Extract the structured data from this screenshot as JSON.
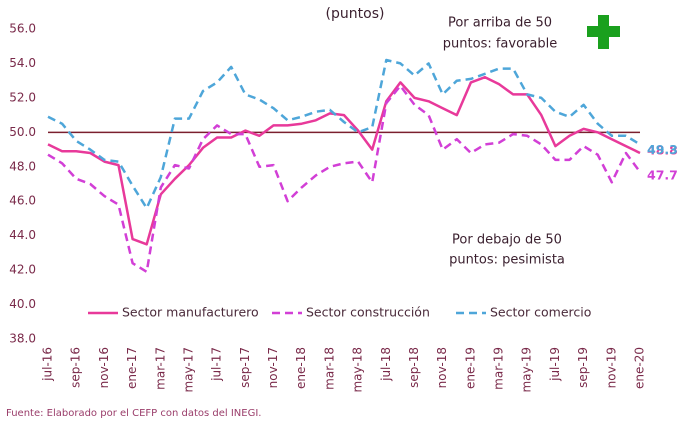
{
  "chart_data": {
    "type": "line",
    "title": "(puntos)",
    "annotation_above": [
      "Por arriba de 50",
      "puntos: favorable"
    ],
    "annotation_below": [
      "Por debajo de 50",
      "puntos: pesimista"
    ],
    "source": "Fuente: Elaborado por el CEFP con datos del INEGI.",
    "reference_line": 50,
    "reference_color": "#7b1f2e",
    "categories": [
      "jul-16",
      null,
      "sep-16",
      null,
      "nov-16",
      null,
      "ene-17",
      null,
      "mar-17",
      null,
      "may-17",
      null,
      "jul-17",
      null,
      "sep-17",
      null,
      "nov-17",
      null,
      "ene-18",
      null,
      "mar-18",
      null,
      "may-18",
      null,
      "jul-18",
      null,
      "sep-18",
      null,
      "nov-18",
      null,
      "ene-19",
      null,
      "mar-19",
      null,
      "may-19",
      null,
      "jul-19",
      null,
      "sep-19",
      null,
      "nov-19",
      null,
      "ene-20"
    ],
    "series": [
      {
        "name": "Sector manufacturero",
        "color": "#e8399a",
        "dash": "solid",
        "values": [
          49.3,
          48.9,
          48.9,
          48.8,
          48.3,
          48.1,
          43.8,
          43.5,
          46.4,
          47.3,
          48.1,
          49.1,
          49.7,
          49.7,
          50.1,
          49.8,
          50.4,
          50.4,
          50.5,
          50.7,
          51.1,
          51.0,
          50.1,
          49.0,
          51.8,
          52.9,
          52.0,
          51.8,
          51.4,
          51.0,
          52.9,
          53.2,
          52.8,
          52.2,
          52.2,
          51.0,
          49.2,
          49.8,
          50.2,
          50.0,
          49.6,
          49.2,
          48.8
        ]
      },
      {
        "name": "Sector construcción",
        "color": "#d23fd6",
        "dash": "dashed",
        "values": [
          48.7,
          48.2,
          47.3,
          47.0,
          46.3,
          45.8,
          42.4,
          41.9,
          46.8,
          48.1,
          47.9,
          49.6,
          50.4,
          49.9,
          49.9,
          48.0,
          48.1,
          46.0,
          46.8,
          47.5,
          48.0,
          48.2,
          48.3,
          47.1,
          51.7,
          52.7,
          51.6,
          51.0,
          49.0,
          49.6,
          48.8,
          49.3,
          49.4,
          49.9,
          49.8,
          49.3,
          48.4,
          48.4,
          49.2,
          48.7,
          47.1,
          48.8,
          47.7
        ]
      },
      {
        "name": "Sector comercio",
        "color": "#4ea6d9",
        "dash": "dashed",
        "values": [
          50.9,
          50.5,
          49.5,
          49.0,
          48.4,
          48.3,
          46.9,
          45.6,
          47.4,
          50.8,
          50.8,
          52.4,
          52.9,
          53.8,
          52.2,
          51.9,
          51.4,
          50.7,
          50.9,
          51.2,
          51.3,
          50.6,
          50.0,
          50.3,
          54.2,
          54.0,
          53.3,
          54.0,
          52.2,
          53.0,
          53.1,
          53.4,
          53.7,
          53.7,
          52.2,
          52.0,
          51.2,
          50.9,
          51.6,
          50.5,
          49.8,
          49.8,
          49.3
        ]
      }
    ],
    "ylim": [
      38,
      56
    ],
    "yticks": [
      {
        "value": 38,
        "label": "38.0"
      },
      {
        "value": 40,
        "label": "40.0"
      },
      {
        "value": 42,
        "label": "42.0"
      },
      {
        "value": 44,
        "label": "44.0"
      },
      {
        "value": 46,
        "label": "46.0"
      },
      {
        "value": 48,
        "label": "48.0"
      },
      {
        "value": 50,
        "label": "50.0"
      },
      {
        "value": 52,
        "label": "52.0"
      },
      {
        "value": 54,
        "label": "54.0"
      },
      {
        "value": 56,
        "label": "56.0"
      }
    ]
  }
}
